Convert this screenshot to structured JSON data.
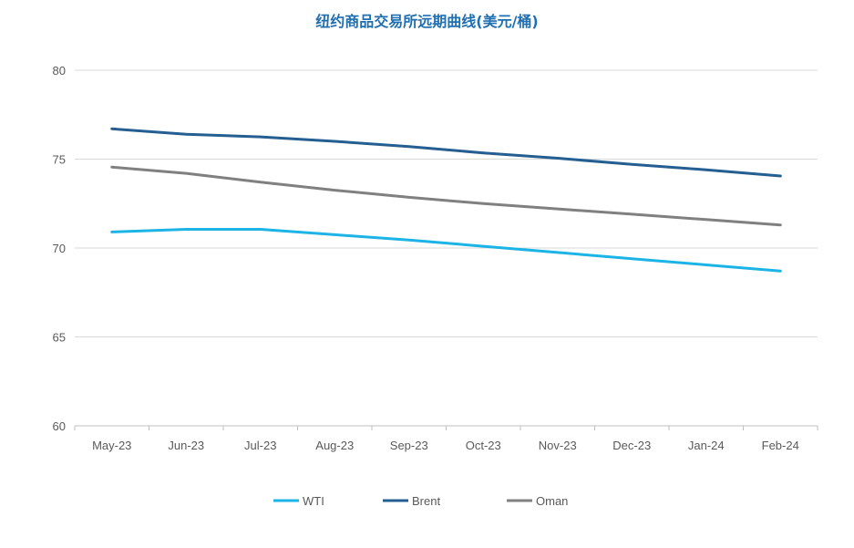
{
  "chart_data": {
    "type": "line",
    "title": "纽约商品交易所远期曲线(美元/桶)",
    "categories": [
      "May-23",
      "Jun-23",
      "Jul-23",
      "Aug-23",
      "Sep-23",
      "Oct-23",
      "Nov-23",
      "Dec-23",
      "Jan-24",
      "Feb-24"
    ],
    "ylim": [
      60,
      80
    ],
    "yticks": [
      60,
      65,
      70,
      75,
      80
    ],
    "grid": true,
    "legend_position": "bottom",
    "series": [
      {
        "name": "WTI",
        "color": "#1cb4e6",
        "values": [
          70.9,
          71.05,
          71.05,
          70.75,
          70.45,
          70.1,
          69.75,
          69.4,
          69.05,
          68.7
        ]
      },
      {
        "name": "Brent",
        "color": "#255e91",
        "values": [
          76.7,
          76.4,
          76.25,
          76.0,
          75.7,
          75.35,
          75.05,
          74.7,
          74.4,
          74.05
        ]
      },
      {
        "name": "Oman",
        "color": "#808080",
        "values": [
          74.55,
          74.2,
          73.7,
          73.25,
          72.85,
          72.5,
          72.2,
          71.9,
          71.6,
          71.3
        ]
      }
    ]
  }
}
